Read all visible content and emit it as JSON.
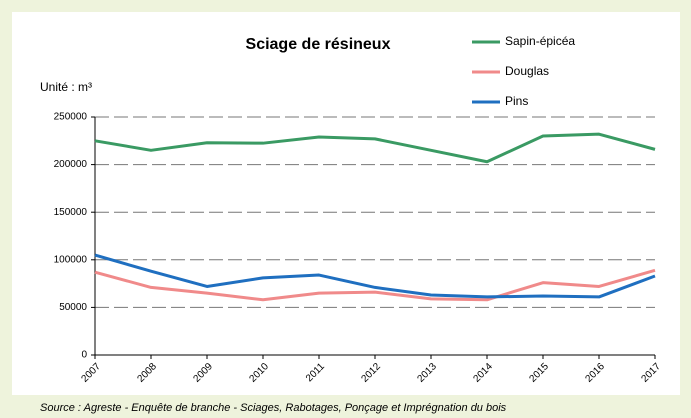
{
  "chart_data": {
    "type": "line",
    "title": "Sciage de résineux",
    "y_label": "Unité : m³",
    "source": "Source : Agreste - Enquête de branche - Sciages, Rabotages, Ponçage et Imprégnation du bois",
    "categories": [
      "2007",
      "2008",
      "2009",
      "2010",
      "2011",
      "2012",
      "2013",
      "2014",
      "2015",
      "2016",
      "2017"
    ],
    "series": [
      {
        "name": "Sapin-épicéa",
        "color": "#3a9a63",
        "values": [
          225000,
          215000,
          223000,
          222500,
          229000,
          227000,
          215000,
          203000,
          230000,
          232000,
          216000
        ]
      },
      {
        "name": "Douglas",
        "color": "#f08a8a",
        "values": [
          87000,
          71000,
          65000,
          58000,
          65000,
          66000,
          59000,
          58000,
          76000,
          72000,
          89000
        ]
      },
      {
        "name": "Pins",
        "color": "#1f6fc0",
        "values": [
          105000,
          88000,
          72000,
          81000,
          84000,
          71000,
          63000,
          61000,
          62000,
          61000,
          83000
        ]
      }
    ],
    "ylim": [
      0,
      250000
    ],
    "yticks": [
      0,
      50000,
      100000,
      150000,
      200000,
      250000
    ],
    "grid": true
  }
}
